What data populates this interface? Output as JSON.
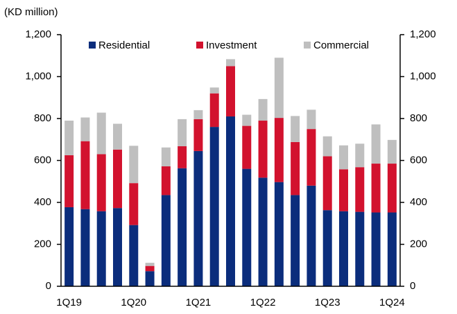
{
  "chart_data": {
    "type": "stacked_bar",
    "y_label": "(KD million)",
    "categories": [
      "1Q19",
      null,
      null,
      null,
      "1Q20",
      null,
      null,
      null,
      "1Q21",
      null,
      null,
      null,
      "1Q22",
      null,
      null,
      null,
      "1Q23",
      null,
      null,
      null,
      "1Q24"
    ],
    "series": [
      {
        "name": "Residential",
        "color": "#0b2d7c",
        "values": [
          377,
          368,
          358,
          373,
          292,
          72,
          435,
          563,
          645,
          760,
          810,
          560,
          518,
          497,
          435,
          480,
          363,
          358,
          355,
          352,
          352
        ]
      },
      {
        "name": "Investment",
        "color": "#d2122e",
        "values": [
          248,
          324,
          272,
          279,
          200,
          25,
          137,
          105,
          152,
          160,
          240,
          205,
          272,
          306,
          253,
          270,
          257,
          200,
          213,
          233,
          233
        ]
      },
      {
        "name": "Commercial",
        "color": "#bfbfbf",
        "values": [
          165,
          113,
          198,
          123,
          178,
          15,
          90,
          129,
          43,
          28,
          33,
          53,
          103,
          287,
          124,
          92,
          95,
          114,
          112,
          187,
          113
        ]
      }
    ],
    "ylim": [
      0,
      1200
    ],
    "yticks": [
      0,
      200,
      400,
      600,
      800,
      {
        "value": 1000,
        "label": "1,000"
      },
      {
        "value": 1200,
        "label": "1,200"
      }
    ],
    "y2lim": [
      0,
      1200
    ],
    "y2ticks": [
      0,
      200,
      400,
      600,
      800,
      {
        "value": 1000,
        "label": "1,000"
      },
      {
        "value": 1200,
        "label": "1,200"
      }
    ],
    "legend": "top"
  }
}
